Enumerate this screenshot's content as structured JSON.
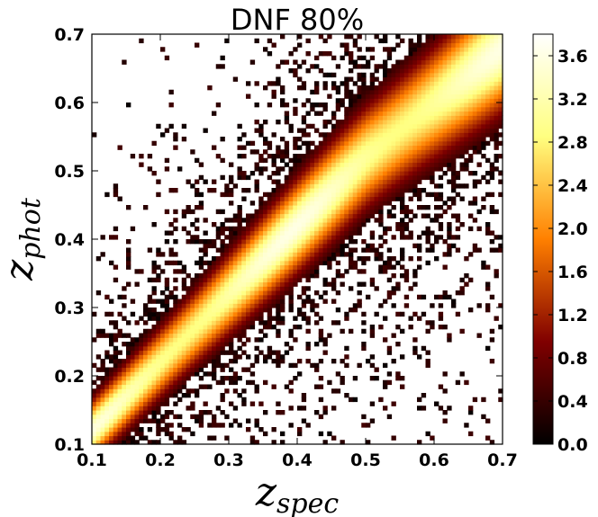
{
  "chart_data": {
    "type": "heatmap",
    "title": "DNF 80%",
    "xlabel": "z",
    "xlabel_sub": "spec",
    "ylabel": "z",
    "ylabel_sub": "phot",
    "xlim": [
      0.1,
      0.7
    ],
    "ylim": [
      0.1,
      0.7
    ],
    "x_ticks": [
      "0.1",
      "0.2",
      "0.3",
      "0.4",
      "0.5",
      "0.6",
      "0.7"
    ],
    "y_ticks": [
      "0.1",
      "0.2",
      "0.3",
      "0.4",
      "0.5",
      "0.6",
      "0.7"
    ],
    "colorbar": {
      "min": 0.0,
      "max": 3.8,
      "ticks": [
        "0.0",
        "0.4",
        "0.8",
        "1.2",
        "1.6",
        "2.0",
        "2.4",
        "2.8",
        "3.2",
        "3.6"
      ],
      "colormap": "afmhot"
    },
    "ridge": {
      "x": [
        0.1,
        0.2,
        0.3,
        0.4,
        0.5,
        0.6,
        0.7
      ],
      "y": [
        0.12,
        0.22,
        0.32,
        0.42,
        0.52,
        0.6,
        0.68
      ]
    },
    "ridge_peak_value": 3.6,
    "grid": false
  }
}
